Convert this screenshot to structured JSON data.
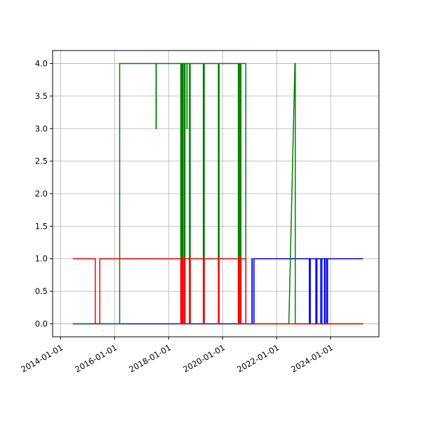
{
  "chart_data": {
    "type": "line",
    "title": "",
    "xlabel": "",
    "ylabel": "",
    "x_axis_type": "date",
    "xlim": [
      "2013-09-15",
      "2025-10-15"
    ],
    "ylim": [
      -0.2,
      4.2
    ],
    "grid": true,
    "x_ticks": [
      "2014-01-01",
      "2016-01-01",
      "2018-01-01",
      "2020-01-01",
      "2022-01-01",
      "2024-01-01"
    ],
    "y_ticks": [
      0.0,
      0.5,
      1.0,
      1.5,
      2.0,
      2.5,
      3.0,
      3.5,
      4.0
    ],
    "y_tick_labels": [
      "0.0",
      "0.5",
      "1.0",
      "1.5",
      "2.0",
      "2.5",
      "3.0",
      "3.5",
      "4.0"
    ],
    "series": [
      {
        "color": "#0000ff",
        "points": [
          [
            "2014-06-15",
            0
          ],
          [
            "2021-02-01",
            0
          ],
          [
            "2021-02-01",
            1
          ],
          [
            "2021-02-06",
            1
          ],
          [
            "2021-02-06",
            0
          ],
          [
            "2021-03-01",
            0
          ],
          [
            "2021-03-01",
            1
          ],
          [
            "2023-03-20",
            1
          ],
          [
            "2023-03-20",
            0
          ],
          [
            "2023-04-01",
            0
          ],
          [
            "2023-04-01",
            1
          ],
          [
            "2023-06-15",
            1
          ],
          [
            "2023-06-15",
            0
          ],
          [
            "2023-06-30",
            0
          ],
          [
            "2023-06-30",
            1
          ],
          [
            "2023-08-20",
            1
          ],
          [
            "2023-08-20",
            0
          ],
          [
            "2023-09-05",
            0
          ],
          [
            "2023-09-05",
            1
          ],
          [
            "2023-10-10",
            1
          ],
          [
            "2023-10-10",
            0
          ],
          [
            "2023-10-20",
            0
          ],
          [
            "2023-10-20",
            1
          ],
          [
            "2023-11-10",
            1
          ],
          [
            "2023-11-10",
            0
          ],
          [
            "2023-11-20",
            0
          ],
          [
            "2023-11-20",
            1
          ],
          [
            "2025-03-15",
            1
          ]
        ]
      },
      {
        "color": "#008000",
        "points": [
          [
            "2014-06-15",
            0
          ],
          [
            "2016-03-10",
            0
          ],
          [
            "2016-03-10",
            4
          ],
          [
            "2017-07-15",
            4
          ],
          [
            "2017-07-15",
            3
          ],
          [
            "2017-07-18",
            3
          ],
          [
            "2017-07-18",
            4
          ],
          [
            "2018-06-15",
            4
          ],
          [
            "2018-06-15",
            0
          ],
          [
            "2018-06-25",
            0
          ],
          [
            "2018-06-25",
            4
          ],
          [
            "2018-07-05",
            4
          ],
          [
            "2018-07-05",
            0
          ],
          [
            "2018-07-15",
            0
          ],
          [
            "2018-07-15",
            4
          ],
          [
            "2018-08-01",
            4
          ],
          [
            "2018-08-01",
            0
          ],
          [
            "2018-08-10",
            0
          ],
          [
            "2018-08-10",
            4
          ],
          [
            "2018-09-05",
            4
          ],
          [
            "2018-09-05",
            3
          ],
          [
            "2018-09-08",
            3
          ],
          [
            "2018-09-08",
            4
          ],
          [
            "2018-10-10",
            4
          ],
          [
            "2018-10-10",
            0
          ],
          [
            "2018-10-20",
            0
          ],
          [
            "2018-10-20",
            4
          ],
          [
            "2019-04-15",
            4
          ],
          [
            "2019-04-15",
            0
          ],
          [
            "2019-04-28",
            0
          ],
          [
            "2019-04-28",
            4
          ],
          [
            "2019-11-05",
            4
          ],
          [
            "2019-11-05",
            0
          ],
          [
            "2019-11-15",
            0
          ],
          [
            "2019-11-15",
            4
          ],
          [
            "2020-08-01",
            4
          ],
          [
            "2020-08-01",
            0
          ],
          [
            "2020-08-10",
            0
          ],
          [
            "2020-08-10",
            4
          ],
          [
            "2020-08-25",
            4
          ],
          [
            "2020-08-25",
            0
          ],
          [
            "2020-09-05",
            0
          ],
          [
            "2020-09-05",
            4
          ],
          [
            "2020-11-10",
            4
          ],
          [
            "2020-11-10",
            0
          ],
          [
            "2022-06-15",
            0
          ],
          [
            "2022-09-05",
            4
          ],
          [
            "2022-09-10",
            4
          ],
          [
            "2022-09-10",
            0
          ],
          [
            "2025-03-15",
            0
          ]
        ]
      },
      {
        "color": "#ff0000",
        "points": [
          [
            "2014-06-15",
            1
          ],
          [
            "2015-04-15",
            1
          ],
          [
            "2015-04-15",
            0
          ],
          [
            "2015-06-15",
            0
          ],
          [
            "2015-06-15",
            1
          ],
          [
            "2018-06-15",
            1
          ],
          [
            "2018-06-15",
            0
          ],
          [
            "2018-06-25",
            0
          ],
          [
            "2018-06-25",
            1
          ],
          [
            "2018-07-05",
            1
          ],
          [
            "2018-07-05",
            0
          ],
          [
            "2018-07-15",
            0
          ],
          [
            "2018-07-15",
            1
          ],
          [
            "2018-08-01",
            1
          ],
          [
            "2018-08-01",
            0
          ],
          [
            "2018-08-10",
            0
          ],
          [
            "2018-08-10",
            1
          ],
          [
            "2018-10-10",
            1
          ],
          [
            "2018-10-10",
            0
          ],
          [
            "2018-10-20",
            0
          ],
          [
            "2018-10-20",
            1
          ],
          [
            "2019-04-15",
            1
          ],
          [
            "2019-04-15",
            0
          ],
          [
            "2019-04-28",
            0
          ],
          [
            "2019-04-28",
            1
          ],
          [
            "2019-11-05",
            1
          ],
          [
            "2019-11-05",
            0
          ],
          [
            "2019-11-15",
            0
          ],
          [
            "2019-11-15",
            1
          ],
          [
            "2020-08-01",
            1
          ],
          [
            "2020-08-01",
            0
          ],
          [
            "2020-08-10",
            0
          ],
          [
            "2020-08-10",
            1
          ],
          [
            "2020-08-25",
            1
          ],
          [
            "2020-08-25",
            0
          ],
          [
            "2020-09-05",
            0
          ],
          [
            "2020-09-05",
            1
          ],
          [
            "2020-11-10",
            1
          ],
          [
            "2020-11-10",
            0
          ],
          [
            "2025-03-15",
            0
          ]
        ]
      }
    ]
  }
}
